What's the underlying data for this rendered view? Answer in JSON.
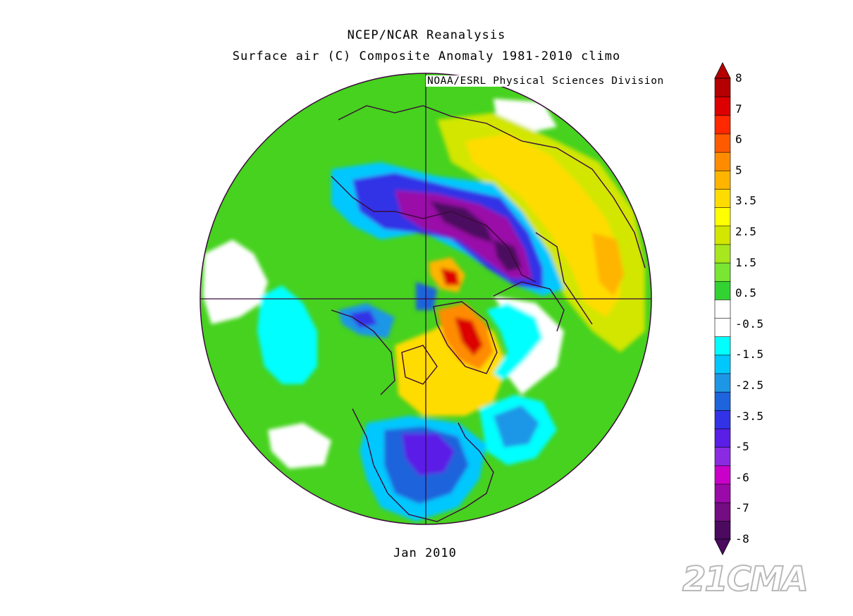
{
  "header": {
    "title": "NCEP/NCAR Reanalysis",
    "subtitle": "Surface air (C) Composite Anomaly 1981-2010 climo",
    "credit": "NOAA/ESRL Physical Sciences Division"
  },
  "footer": {
    "date": "Jan 2010"
  },
  "colorbar": {
    "labels": [
      "8",
      "7",
      "6",
      "5",
      "3.5",
      "2.5",
      "1.5",
      "0.5",
      "-0.5",
      "-1.5",
      "-2.5",
      "-3.5",
      "-5",
      "-6",
      "-7",
      "-8"
    ],
    "colors": [
      "#4b0a5f",
      "#740c82",
      "#9a0aa8",
      "#c800c8",
      "#8a2be2",
      "#5a1ee6",
      "#3232e6",
      "#1e64dc",
      "#1e96e6",
      "#00c8ff",
      "#00ffff",
      "#ffffff",
      "#ffffff",
      "#32d232",
      "#78e632",
      "#a8e61e",
      "#d2e600",
      "#ffff00",
      "#ffdc00",
      "#ffb400",
      "#ff8c00",
      "#ff5a00",
      "#ff2800",
      "#dc0000",
      "#b40000"
    ],
    "cap_top_color": "#b40000",
    "cap_bottom_color": "#4b0a5f"
  },
  "watermark": {
    "text": "21CMA"
  }
}
